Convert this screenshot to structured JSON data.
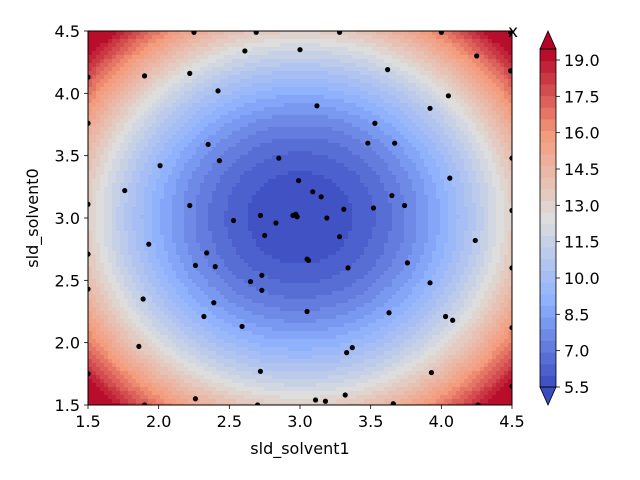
{
  "chart_data": {
    "type": "heatmap",
    "subtype": "filled-contour",
    "title": "",
    "corner_label": "x",
    "xlabel": "sld_solvent1",
    "ylabel": "sld_solvent0",
    "xlim": [
      1.5,
      4.5
    ],
    "ylim": [
      1.5,
      4.5
    ],
    "xticks": [
      "1.5",
      "2.0",
      "2.5",
      "3.0",
      "3.5",
      "4.0",
      "4.5"
    ],
    "yticks": [
      "1.5",
      "2.0",
      "2.5",
      "3.0",
      "3.5",
      "4.0",
      "4.5"
    ],
    "colormap": "coolwarm",
    "colorbar": {
      "min": 5.5,
      "max": 20.0,
      "ticks": [
        "5.5",
        "7.0",
        "8.5",
        "10.0",
        "11.5",
        "13.0",
        "14.5",
        "16.0",
        "17.5",
        "19.0"
      ],
      "extend": "both"
    },
    "surface": {
      "center": [
        3.0,
        3.0
      ],
      "min_value": 5.5,
      "description_values": "approx. value = 5.5 + 3.6*((x-3)^2 + (y-3)^2), clipped at 20"
    },
    "sample_points": [
      [
        1.5,
        4.13
      ],
      [
        1.5,
        3.76
      ],
      [
        1.5,
        3.11
      ],
      [
        1.5,
        2.71
      ],
      [
        1.5,
        2.43
      ],
      [
        1.5,
        1.75
      ],
      [
        1.9,
        4.14
      ],
      [
        1.76,
        3.22
      ],
      [
        2.01,
        3.42
      ],
      [
        1.93,
        2.79
      ],
      [
        1.89,
        2.35
      ],
      [
        1.86,
        1.97
      ],
      [
        1.9,
        1.5
      ],
      [
        2.22,
        4.16
      ],
      [
        2.25,
        4.49
      ],
      [
        2.42,
        4.02
      ],
      [
        2.35,
        3.59
      ],
      [
        2.43,
        3.46
      ],
      [
        2.22,
        3.1
      ],
      [
        2.26,
        2.62
      ],
      [
        2.34,
        2.72
      ],
      [
        2.4,
        2.61
      ],
      [
        2.39,
        2.32
      ],
      [
        2.32,
        2.21
      ],
      [
        2.26,
        1.55
      ],
      [
        2.61,
        4.34
      ],
      [
        2.69,
        4.49
      ],
      [
        2.53,
        2.98
      ],
      [
        2.59,
        2.13
      ],
      [
        2.65,
        2.49
      ],
      [
        2.7,
        1.5
      ],
      [
        2.72,
        1.77
      ],
      [
        2.73,
        2.54
      ],
      [
        2.73,
        2.42
      ],
      [
        2.72,
        3.02
      ],
      [
        2.75,
        2.86
      ],
      [
        2.83,
        2.96
      ],
      [
        2.85,
        3.48
      ],
      [
        2.95,
        3.02
      ],
      [
        2.97,
        3.03
      ],
      [
        2.98,
        3.01
      ],
      [
        2.99,
        3.3
      ],
      [
        3.0,
        4.35
      ],
      [
        3.05,
        2.67
      ],
      [
        3.06,
        2.66
      ],
      [
        3.05,
        2.25
      ],
      [
        3.09,
        3.21
      ],
      [
        3.11,
        1.54
      ],
      [
        3.12,
        3.9
      ],
      [
        3.15,
        3.17
      ],
      [
        3.18,
        1.53
      ],
      [
        3.19,
        3.0
      ],
      [
        3.28,
        2.85
      ],
      [
        3.28,
        4.49
      ],
      [
        3.31,
        3.07
      ],
      [
        3.32,
        1.58
      ],
      [
        3.33,
        1.92
      ],
      [
        3.34,
        2.6
      ],
      [
        3.37,
        1.96
      ],
      [
        3.48,
        3.6
      ],
      [
        3.52,
        3.08
      ],
      [
        3.53,
        3.76
      ],
      [
        3.62,
        4.19
      ],
      [
        3.63,
        2.24
      ],
      [
        3.65,
        3.18
      ],
      [
        3.66,
        1.51
      ],
      [
        3.67,
        3.6
      ],
      [
        3.74,
        3.1
      ],
      [
        3.76,
        2.64
      ],
      [
        3.92,
        3.88
      ],
      [
        3.92,
        2.48
      ],
      [
        3.93,
        1.76
      ],
      [
        4.0,
        4.49
      ],
      [
        4.03,
        2.21
      ],
      [
        4.05,
        3.98
      ],
      [
        4.06,
        3.32
      ],
      [
        4.08,
        2.18
      ],
      [
        4.24,
        2.82
      ],
      [
        4.25,
        4.3
      ],
      [
        4.26,
        1.5
      ],
      [
        4.49,
        4.49
      ],
      [
        4.49,
        4.18
      ],
      [
        4.5,
        3.48
      ],
      [
        4.5,
        3.06
      ],
      [
        4.5,
        2.6
      ],
      [
        4.5,
        2.12
      ],
      [
        4.5,
        1.65
      ]
    ]
  }
}
